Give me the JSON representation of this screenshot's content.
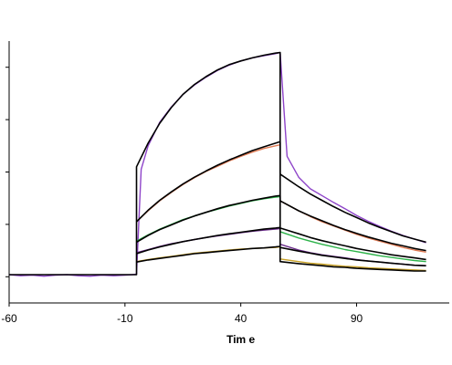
{
  "chart_data": {
    "type": "line",
    "title": "",
    "xlabel": "Tim e",
    "ylabel": "",
    "xlim": [
      -60,
      130
    ],
    "ylim": [
      -5,
      45
    ],
    "x_ticks": [
      -60,
      -10,
      40,
      90
    ],
    "y_ticks": [
      0,
      10,
      20,
      30,
      40
    ],
    "y_tick_labels_visible": false,
    "grid": false,
    "legend": "none",
    "series": [
      {
        "color": "#8e44c9",
        "style": "measured",
        "points": [
          [
            -60,
            0.4
          ],
          [
            -55,
            0.2
          ],
          [
            -50,
            0.3
          ],
          [
            -45,
            0.1
          ],
          [
            -40,
            0.3
          ],
          [
            -35,
            0.4
          ],
          [
            -30,
            0.2
          ],
          [
            -25,
            0.1
          ],
          [
            -20,
            0.3
          ],
          [
            -15,
            0.2
          ],
          [
            -10,
            0.3
          ],
          [
            -7,
            0.4
          ],
          [
            -5,
            0.5
          ],
          [
            -3,
            20.5
          ],
          [
            0,
            25
          ],
          [
            5,
            29.5
          ],
          [
            10,
            32.4
          ],
          [
            15,
            34.8
          ],
          [
            20,
            36.6
          ],
          [
            25,
            38.1
          ],
          [
            30,
            39.4
          ],
          [
            35,
            40.4
          ],
          [
            40,
            41.2
          ],
          [
            45,
            41.8
          ],
          [
            50,
            42.2
          ],
          [
            55,
            42.6
          ],
          [
            57,
            42.8
          ],
          [
            60,
            23
          ],
          [
            65,
            19
          ],
          [
            70,
            16.8
          ],
          [
            75,
            15.5
          ],
          [
            80,
            14.2
          ],
          [
            85,
            13
          ],
          [
            90,
            11.7
          ],
          [
            95,
            10.6
          ],
          [
            100,
            9.6
          ],
          [
            105,
            8.7
          ],
          [
            110,
            7.9
          ],
          [
            115,
            7.2
          ],
          [
            120,
            6.5
          ]
        ]
      },
      {
        "color": "#000000",
        "style": "fit",
        "points": [
          [
            -60,
            0.4
          ],
          [
            -5,
            0.4
          ],
          [
            -5,
            21
          ],
          [
            0,
            25.5
          ],
          [
            5,
            29.3
          ],
          [
            10,
            32.3
          ],
          [
            15,
            34.8
          ],
          [
            20,
            36.7
          ],
          [
            25,
            38.2
          ],
          [
            30,
            39.5
          ],
          [
            35,
            40.5
          ],
          [
            40,
            41.2
          ],
          [
            45,
            41.8
          ],
          [
            50,
            42.3
          ],
          [
            55,
            42.7
          ],
          [
            57,
            42.8
          ],
          [
            57,
            19.6
          ],
          [
            65,
            17.2
          ],
          [
            70,
            15.8
          ],
          [
            75,
            14.6
          ],
          [
            80,
            13.4
          ],
          [
            85,
            12.3
          ],
          [
            90,
            11.3
          ],
          [
            95,
            10.3
          ],
          [
            100,
            9.4
          ],
          [
            105,
            8.6
          ],
          [
            110,
            7.8
          ],
          [
            115,
            7.2
          ],
          [
            120,
            6.6
          ]
        ]
      },
      {
        "color": "#e07b54",
        "style": "measured",
        "points": [
          [
            -5,
            10.5
          ],
          [
            0,
            12.6
          ],
          [
            5,
            14.5
          ],
          [
            10,
            16.1
          ],
          [
            15,
            17.6
          ],
          [
            20,
            18.9
          ],
          [
            25,
            20.1
          ],
          [
            30,
            21.1
          ],
          [
            35,
            22.1
          ],
          [
            40,
            23
          ],
          [
            45,
            23.8
          ],
          [
            50,
            24.5
          ],
          [
            55,
            25
          ],
          [
            57,
            25.2
          ],
          [
            57,
            14.5
          ],
          [
            65,
            12.6
          ],
          [
            70,
            11.5
          ],
          [
            75,
            10.5
          ],
          [
            80,
            9.7
          ],
          [
            85,
            8.9
          ],
          [
            90,
            8.1
          ],
          [
            95,
            7.4
          ],
          [
            100,
            6.8
          ],
          [
            105,
            6.2
          ],
          [
            110,
            5.6
          ],
          [
            115,
            5.1
          ],
          [
            120,
            4.7
          ]
        ]
      },
      {
        "color": "#000000",
        "style": "fit",
        "points": [
          [
            -5,
            10.5
          ],
          [
            0,
            12.7
          ],
          [
            5,
            14.6
          ],
          [
            10,
            16.2
          ],
          [
            15,
            17.7
          ],
          [
            20,
            19
          ],
          [
            25,
            20.2
          ],
          [
            30,
            21.3
          ],
          [
            35,
            22.3
          ],
          [
            40,
            23.2
          ],
          [
            45,
            24.1
          ],
          [
            50,
            24.8
          ],
          [
            55,
            25.5
          ],
          [
            57,
            25.8
          ],
          [
            57,
            14.5
          ],
          [
            65,
            12.6
          ],
          [
            70,
            11.6
          ],
          [
            75,
            10.7
          ],
          [
            80,
            9.8
          ],
          [
            85,
            9
          ],
          [
            90,
            8.3
          ],
          [
            95,
            7.6
          ],
          [
            100,
            7
          ],
          [
            105,
            6.4
          ],
          [
            110,
            5.9
          ],
          [
            115,
            5.4
          ],
          [
            120,
            5
          ]
        ]
      },
      {
        "color": "#2db34a",
        "style": "measured",
        "points": [
          [
            -5,
            6.8
          ],
          [
            0,
            8
          ],
          [
            5,
            9.1
          ],
          [
            10,
            10
          ],
          [
            15,
            10.9
          ],
          [
            20,
            11.6
          ],
          [
            25,
            12.3
          ],
          [
            30,
            12.9
          ],
          [
            35,
            13.5
          ],
          [
            40,
            14
          ],
          [
            45,
            14.5
          ],
          [
            50,
            14.9
          ],
          [
            55,
            15.2
          ],
          [
            57,
            15.3
          ],
          [
            57,
            8.6
          ],
          [
            65,
            7.4
          ],
          [
            70,
            6.8
          ],
          [
            75,
            6.2
          ],
          [
            80,
            5.7
          ],
          [
            85,
            5.2
          ],
          [
            90,
            4.8
          ],
          [
            95,
            4.4
          ],
          [
            100,
            4
          ],
          [
            105,
            3.7
          ],
          [
            110,
            3.4
          ],
          [
            115,
            3.1
          ],
          [
            120,
            2.9
          ]
        ]
      },
      {
        "color": "#000000",
        "style": "fit",
        "points": [
          [
            -5,
            6.6
          ],
          [
            0,
            7.9
          ],
          [
            5,
            9
          ],
          [
            10,
            9.9
          ],
          [
            15,
            10.8
          ],
          [
            20,
            11.6
          ],
          [
            25,
            12.3
          ],
          [
            30,
            13
          ],
          [
            35,
            13.6
          ],
          [
            40,
            14.1
          ],
          [
            45,
            14.6
          ],
          [
            50,
            15
          ],
          [
            55,
            15.4
          ],
          [
            57,
            15.5
          ],
          [
            57,
            9.3
          ],
          [
            65,
            8.2
          ],
          [
            70,
            7.5
          ],
          [
            75,
            6.9
          ],
          [
            80,
            6.4
          ],
          [
            85,
            5.9
          ],
          [
            90,
            5.4
          ],
          [
            95,
            5
          ],
          [
            100,
            4.6
          ],
          [
            105,
            4.2
          ],
          [
            110,
            3.9
          ],
          [
            115,
            3.6
          ],
          [
            120,
            3.3
          ]
        ]
      },
      {
        "color": "#6a2a8a",
        "style": "measured",
        "points": [
          [
            -5,
            4.6
          ],
          [
            0,
            5.2
          ],
          [
            5,
            5.8
          ],
          [
            10,
            6.3
          ],
          [
            15,
            6.7
          ],
          [
            20,
            7.1
          ],
          [
            25,
            7.5
          ],
          [
            30,
            7.8
          ],
          [
            35,
            8.1
          ],
          [
            40,
            8.4
          ],
          [
            45,
            8.7
          ],
          [
            50,
            8.9
          ],
          [
            55,
            9.1
          ],
          [
            57,
            9.2
          ],
          [
            57,
            6.2
          ],
          [
            65,
            5.1
          ],
          [
            70,
            4.6
          ],
          [
            75,
            4.2
          ],
          [
            80,
            3.9
          ],
          [
            85,
            3.6
          ],
          [
            90,
            3.3
          ],
          [
            95,
            3
          ],
          [
            100,
            2.8
          ],
          [
            105,
            2.6
          ],
          [
            110,
            2.4
          ],
          [
            115,
            2.2
          ],
          [
            120,
            2.1
          ]
        ]
      },
      {
        "color": "#000000",
        "style": "fit",
        "points": [
          [
            -5,
            4.4
          ],
          [
            0,
            5.1
          ],
          [
            5,
            5.7
          ],
          [
            10,
            6.2
          ],
          [
            15,
            6.7
          ],
          [
            20,
            7.1
          ],
          [
            25,
            7.5
          ],
          [
            30,
            7.9
          ],
          [
            35,
            8.2
          ],
          [
            40,
            8.5
          ],
          [
            45,
            8.8
          ],
          [
            50,
            9.1
          ],
          [
            55,
            9.3
          ],
          [
            57,
            9.4
          ],
          [
            57,
            5.6
          ],
          [
            65,
            4.9
          ],
          [
            70,
            4.5
          ],
          [
            75,
            4.1
          ],
          [
            80,
            3.8
          ],
          [
            85,
            3.5
          ],
          [
            90,
            3.2
          ],
          [
            95,
            3
          ],
          [
            100,
            2.8
          ],
          [
            105,
            2.6
          ],
          [
            110,
            2.4
          ],
          [
            115,
            2.2
          ],
          [
            120,
            2.1
          ]
        ]
      },
      {
        "color": "#c9a227",
        "style": "measured",
        "points": [
          [
            -5,
            2.9
          ],
          [
            0,
            3.3
          ],
          [
            5,
            3.6
          ],
          [
            10,
            3.9
          ],
          [
            15,
            4.2
          ],
          [
            20,
            4.5
          ],
          [
            25,
            4.7
          ],
          [
            30,
            4.9
          ],
          [
            35,
            5.1
          ],
          [
            40,
            5.3
          ],
          [
            45,
            5.4
          ],
          [
            50,
            5.5
          ],
          [
            55,
            5.6
          ],
          [
            57,
            5.7
          ],
          [
            57,
            3.4
          ],
          [
            65,
            2.9
          ],
          [
            70,
            2.6
          ],
          [
            75,
            2.4
          ],
          [
            80,
            2.2
          ],
          [
            85,
            2
          ],
          [
            90,
            1.9
          ],
          [
            95,
            1.7
          ],
          [
            100,
            1.6
          ],
          [
            105,
            1.5
          ],
          [
            110,
            1.4
          ],
          [
            115,
            1.3
          ],
          [
            120,
            1.2
          ]
        ]
      },
      {
        "color": "#000000",
        "style": "fit",
        "points": [
          [
            -5,
            2.8
          ],
          [
            0,
            3.2
          ],
          [
            5,
            3.5
          ],
          [
            10,
            3.8
          ],
          [
            15,
            4.1
          ],
          [
            20,
            4.4
          ],
          [
            25,
            4.6
          ],
          [
            30,
            4.8
          ],
          [
            35,
            5
          ],
          [
            40,
            5.2
          ],
          [
            45,
            5.4
          ],
          [
            50,
            5.5
          ],
          [
            55,
            5.7
          ],
          [
            57,
            5.8
          ],
          [
            57,
            2.9
          ],
          [
            65,
            2.5
          ],
          [
            70,
            2.3
          ],
          [
            75,
            2.1
          ],
          [
            80,
            1.9
          ],
          [
            85,
            1.8
          ],
          [
            90,
            1.6
          ],
          [
            95,
            1.5
          ],
          [
            100,
            1.4
          ],
          [
            105,
            1.3
          ],
          [
            110,
            1.2
          ],
          [
            115,
            1.1
          ],
          [
            120,
            1.1
          ]
        ]
      }
    ]
  }
}
